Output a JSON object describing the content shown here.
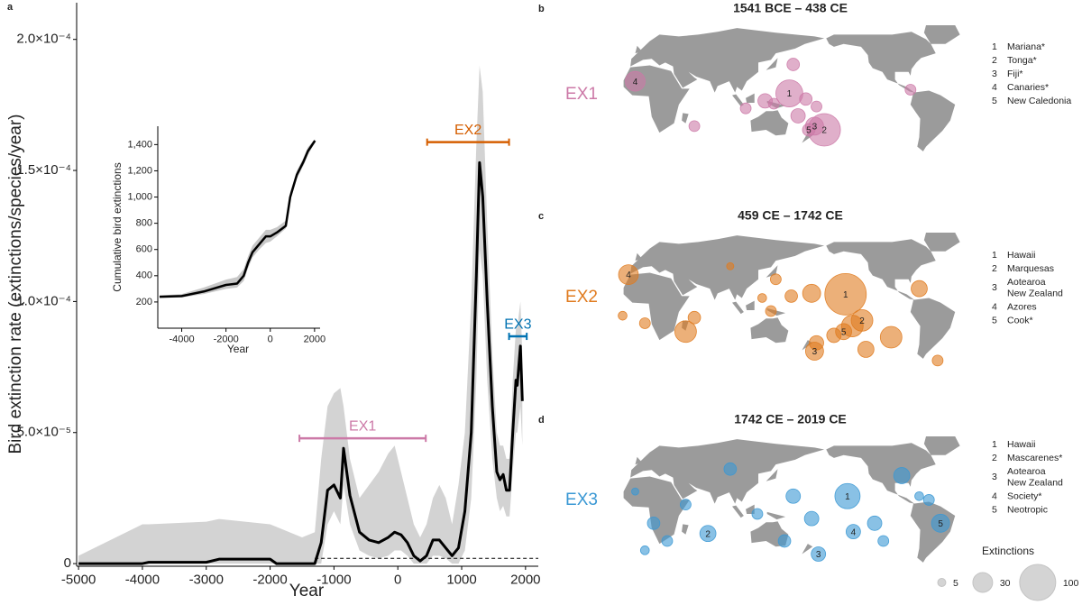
{
  "chart_data": [
    {
      "type": "line",
      "label": "a",
      "y_label": "Bird extinction rate (extinctions/species/year)",
      "x_label": "Year",
      "xlim": [
        -5030,
        2200
      ],
      "ylim": [
        -1e-06,
        0.000214
      ],
      "xticks": [
        -5000,
        -4000,
        -3000,
        -2000,
        -1000,
        0,
        1000,
        2000
      ],
      "yticks": [
        0,
        {
          "value": 5e-05,
          "label": "5.0×10⁻⁵"
        },
        {
          "value": 0.0001,
          "label": "1.0×10⁻⁴"
        },
        {
          "value": 0.00015,
          "label": "1.5×10⁻⁴"
        },
        {
          "value": 0.0002,
          "label": "2.0×10⁻⁴"
        }
      ],
      "x": [
        -5000,
        -4000,
        -3900,
        -3000,
        -2800,
        -2000,
        -1900,
        -1500,
        -1300,
        -1200,
        -1100,
        -1000,
        -900,
        -850,
        -750,
        -600,
        -450,
        -300,
        -150,
        -50,
        50,
        150,
        250,
        350,
        450,
        550,
        650,
        750,
        850,
        950,
        1050,
        1150,
        1230,
        1280,
        1330,
        1400,
        1480,
        1550,
        1600,
        1650,
        1700,
        1750,
        1800,
        1850,
        1870,
        1920,
        1950
      ],
      "series": [
        {
          "color": "#000000",
          "values": [
            0,
            0,
            5e-07,
            5e-07,
            1.7e-06,
            1.7e-06,
            0,
            0,
            0,
            8e-06,
            2.8e-05,
            3e-05,
            2.5e-05,
            4.4e-05,
            2.6e-05,
            1.2e-05,
            9e-06,
            8e-06,
            1e-05,
            1.2e-05,
            1.1e-05,
            8e-06,
            3e-06,
            1e-06,
            3e-06,
            9e-06,
            9e-06,
            6e-06,
            3e-06,
            6e-06,
            2e-05,
            5e-05,
            0.00011,
            0.000153,
            0.00014,
            0.0001,
            6e-05,
            3.5e-05,
            3.2e-05,
            3.4e-05,
            2.8e-05,
            2.8e-05,
            5e-05,
            7e-05,
            6.8e-05,
            8.3e-05,
            6.2e-05
          ]
        }
      ],
      "band": {
        "color": "#d3d3d3",
        "upper": [
          3e-06,
          1.5e-05,
          1.5e-05,
          1.6e-05,
          1.7e-05,
          1.5e-05,
          1.4e-05,
          1e-05,
          1.2e-05,
          4e-05,
          6e-05,
          6.5e-05,
          6.7e-05,
          6e-05,
          4e-05,
          2.5e-05,
          3e-05,
          3.5e-05,
          4.2e-05,
          4.5e-05,
          3.5e-05,
          2.5e-05,
          1.5e-05,
          1e-05,
          1.5e-05,
          2.5e-05,
          3e-05,
          2.5e-05,
          1.5e-05,
          3e-05,
          5e-05,
          0.0001,
          0.00016,
          0.00019,
          0.00018,
          0.00013,
          8e-05,
          5e-05,
          4.5e-05,
          4.5e-05,
          4e-05,
          4e-05,
          7e-05,
          9e-05,
          9e-05,
          0.0001,
          8e-05
        ],
        "lower": [
          0,
          0,
          0,
          0,
          0,
          0,
          0,
          0,
          0,
          0,
          1.5e-05,
          2e-05,
          1.5e-05,
          3e-05,
          1.5e-05,
          5e-06,
          3e-06,
          2e-06,
          3e-06,
          5e-06,
          5e-06,
          3e-06,
          0,
          0,
          0,
          3e-06,
          3e-06,
          2e-06,
          0,
          0,
          5e-06,
          2.5e-05,
          7e-05,
          0.00012,
          0.00011,
          7e-05,
          4e-05,
          2.5e-05,
          2e-05,
          2.2e-05,
          1.8e-05,
          1.8e-05,
          3.5e-05,
          5e-05,
          5e-05,
          6e-05,
          4.5e-05
        ]
      },
      "reference_line": {
        "value": 2e-06,
        "start": -1300
      },
      "intervals": [
        {
          "label": "EX1",
          "start": -1541,
          "end": 438,
          "y": 4.78e-05,
          "color": "#cc79a7"
        },
        {
          "label": "EX2",
          "start": 459,
          "end": 1742,
          "y": 0.0001608,
          "color": "#d55e00"
        },
        {
          "label": "EX3",
          "start": 1742,
          "end": 2019,
          "y": 8.67e-05,
          "color": "#0072b2"
        }
      ]
    },
    {
      "type": "line",
      "y_label": "Cumulative bird extinctions",
      "x_label": "Year",
      "xlim": [
        -5080,
        2250
      ],
      "ylim": [
        0,
        1540
      ],
      "xticks": [
        -4000,
        -2000,
        0,
        2000
      ],
      "yticks": [
        200,
        400,
        600,
        800,
        {
          "value": 1000,
          "label": "1,000"
        },
        {
          "value": 1200,
          "label": "1,200"
        },
        {
          "value": 1400,
          "label": "1,400"
        }
      ],
      "x": [
        -5000,
        -4000,
        -3000,
        -2000,
        -1500,
        -1200,
        -1000,
        -800,
        -500,
        -200,
        0,
        300,
        700,
        900,
        1200,
        1500,
        1700,
        1900,
        2019
      ],
      "series": [
        {
          "color": "#000000",
          "values": [
            240,
            245,
            280,
            330,
            340,
            400,
            500,
            580,
            640,
            700,
            700,
            730,
            780,
            1000,
            1170,
            1270,
            1350,
            1400,
            1430
          ]
        }
      ],
      "band": {
        "color": "#c8c8c8",
        "upper": [
          250,
          260,
          310,
          370,
          390,
          450,
          550,
          630,
          690,
          750,
          750,
          770,
          820,
          1040,
          1200,
          1300,
          1380,
          1420,
          1440
        ],
        "lower": [
          230,
          235,
          260,
          300,
          310,
          360,
          460,
          540,
          600,
          650,
          660,
          700,
          760,
          970,
          1140,
          1240,
          1320,
          1380,
          1420
        ]
      }
    },
    {
      "type": "bubble_map",
      "label": "b",
      "title": "1541 BCE – 438 CE",
      "tag": "EX1",
      "color": "#cc79a7",
      "xlim": [
        -25,
        335
      ],
      "ylim": [
        -60,
        80
      ],
      "points": [
        {
          "x": 154,
          "y": 7,
          "size": 56,
          "label": 1
        },
        {
          "x": 190,
          "y": -32,
          "size": 81,
          "label": 2
        },
        {
          "x": 180,
          "y": -28,
          "size": 25,
          "label": 3
        },
        {
          "x": 174,
          "y": -32,
          "size": 12,
          "label": 5
        },
        {
          "x": -5,
          "y": 20,
          "size": 30,
          "label": 4
        },
        {
          "x": 158,
          "y": 38,
          "size": 12
        },
        {
          "x": 129,
          "y": -1,
          "size": 16
        },
        {
          "x": 138,
          "y": -4,
          "size": 9
        },
        {
          "x": 171,
          "y": 1,
          "size": 12
        },
        {
          "x": 109,
          "y": -9,
          "size": 9
        },
        {
          "x": 182,
          "y": -7,
          "size": 9
        },
        {
          "x": 279,
          "y": 11,
          "size": 9
        },
        {
          "x": 56,
          "y": -28,
          "size": 9
        },
        {
          "x": 163,
          "y": -17,
          "size": 16
        }
      ],
      "key": [
        {
          "number": 1,
          "lines": [
            "Mariana*"
          ]
        },
        {
          "number": 2,
          "lines": [
            "Tonga*"
          ]
        },
        {
          "number": 3,
          "lines": [
            "Fiji*"
          ]
        },
        {
          "number": 4,
          "lines": [
            "Canaries*"
          ]
        },
        {
          "number": 5,
          "lines": [
            "New Caledonia"
          ]
        }
      ]
    },
    {
      "type": "bubble_map",
      "label": "c",
      "title": "459 CE – 1742 CE",
      "tag": "EX2",
      "color": "#e07b1f",
      "xlim": [
        -25,
        335
      ],
      "ylim": [
        -60,
        80
      ],
      "points": [
        {
          "x": 212,
          "y": 14,
          "size": 132,
          "label": 1
        },
        {
          "x": 229,
          "y": -14,
          "size": 36,
          "label": 2
        },
        {
          "x": 210,
          "y": -26,
          "size": 20,
          "label": 5
        },
        {
          "x": 180,
          "y": -47,
          "size": 25,
          "label": 3
        },
        {
          "x": -12,
          "y": 35,
          "size": 30,
          "label": 4
        },
        {
          "x": 219,
          "y": -20,
          "size": 36
        },
        {
          "x": 259,
          "y": -32,
          "size": 36
        },
        {
          "x": 200,
          "y": -30,
          "size": 16
        },
        {
          "x": 47,
          "y": -26,
          "size": 36
        },
        {
          "x": 56,
          "y": -11,
          "size": 12
        },
        {
          "x": 5,
          "y": -17,
          "size": 9
        },
        {
          "x": -18,
          "y": -9,
          "size": 6
        },
        {
          "x": 177,
          "y": 15,
          "size": 25
        },
        {
          "x": 156,
          "y": 12,
          "size": 12
        },
        {
          "x": 135,
          "y": -4,
          "size": 9
        },
        {
          "x": 140,
          "y": 30,
          "size": 9
        },
        {
          "x": 288,
          "y": 20,
          "size": 20
        },
        {
          "x": 307,
          "y": -57,
          "size": 9
        },
        {
          "x": 233,
          "y": -45,
          "size": 20
        },
        {
          "x": 182,
          "y": -38,
          "size": 16
        },
        {
          "x": 93,
          "y": 44,
          "size": 4
        },
        {
          "x": 126,
          "y": 10,
          "size": 6
        }
      ],
      "key": [
        {
          "number": 1,
          "lines": [
            "Hawaii"
          ]
        },
        {
          "number": 2,
          "lines": [
            "Marquesas"
          ]
        },
        {
          "number": 3,
          "lines": [
            "Aotearoa",
            "New Zealand"
          ]
        },
        {
          "number": 4,
          "lines": [
            "Azores"
          ]
        },
        {
          "number": 5,
          "lines": [
            "Cook*"
          ]
        }
      ]
    },
    {
      "type": "bubble_map",
      "label": "d",
      "title": "1742 CE – 2019 CE",
      "tag": "EX3",
      "color": "#3a98d4",
      "xlim": [
        -25,
        335
      ],
      "ylim": [
        -60,
        80
      ],
      "points": [
        {
          "x": 214,
          "y": 16,
          "size": 49,
          "label": 1
        },
        {
          "x": 70,
          "y": -24,
          "size": 20,
          "label": 2
        },
        {
          "x": 184,
          "y": -46,
          "size": 16,
          "label": 3
        },
        {
          "x": 220,
          "y": -22,
          "size": 16,
          "label": 4
        },
        {
          "x": 310,
          "y": -13,
          "size": 25,
          "label": 5
        },
        {
          "x": 270,
          "y": 38,
          "size": 20
        },
        {
          "x": 93,
          "y": 45,
          "size": 12
        },
        {
          "x": 158,
          "y": 16,
          "size": 16
        },
        {
          "x": 177,
          "y": -8,
          "size": 16
        },
        {
          "x": 242,
          "y": -13,
          "size": 16
        },
        {
          "x": 14,
          "y": -13,
          "size": 12
        },
        {
          "x": 47,
          "y": 7,
          "size": 9
        },
        {
          "x": 28,
          "y": -32,
          "size": 9
        },
        {
          "x": 5,
          "y": -42,
          "size": 6
        },
        {
          "x": 298,
          "y": 12,
          "size": 9
        },
        {
          "x": 288,
          "y": 16,
          "size": 6
        },
        {
          "x": 149,
          "y": -32,
          "size": 12
        },
        {
          "x": 251,
          "y": -32,
          "size": 9
        },
        {
          "x": 121,
          "y": -3,
          "size": 9
        },
        {
          "x": -5,
          "y": 21,
          "size": 4
        }
      ],
      "key": [
        {
          "number": 1,
          "lines": [
            "Hawaii"
          ]
        },
        {
          "number": 2,
          "lines": [
            "Mascarenes*"
          ]
        },
        {
          "number": 3,
          "lines": [
            "Aotearoa",
            "New Zealand"
          ]
        },
        {
          "number": 4,
          "lines": [
            "Society*"
          ]
        },
        {
          "number": 5,
          "lines": [
            "Neotropic"
          ]
        }
      ],
      "size_legend": {
        "title": "Extinctions",
        "sizes": [
          5,
          30,
          100
        ]
      }
    }
  ]
}
